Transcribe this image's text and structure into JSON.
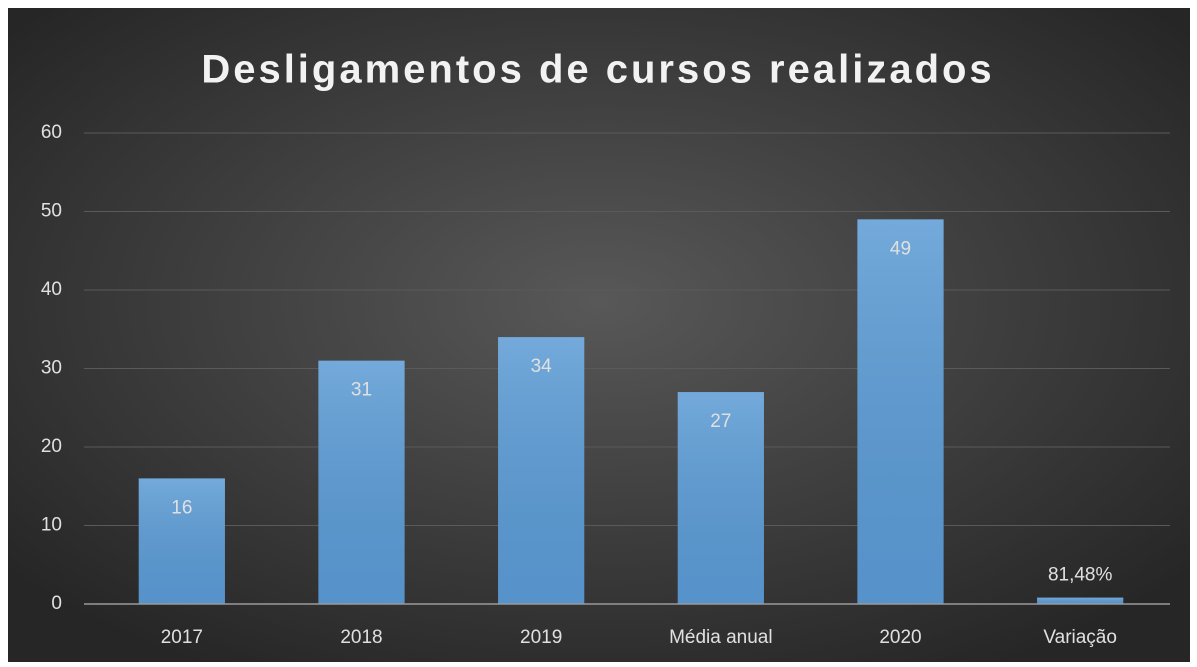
{
  "chart_data": {
    "type": "bar",
    "title": "Desligamentos de cursos realizados",
    "categories": [
      "2017",
      "2018",
      "2019",
      "Média anual",
      "2020",
      "Variação"
    ],
    "values": [
      16,
      31,
      34,
      27,
      49,
      0.8148
    ],
    "value_labels": [
      "16",
      "31",
      "34",
      "27",
      "49",
      "81,48%"
    ],
    "color": "#5b9bd5",
    "ylim": [
      0,
      60
    ],
    "yticks": [
      0,
      10,
      20,
      30,
      40,
      50,
      60
    ],
    "grid": true
  }
}
